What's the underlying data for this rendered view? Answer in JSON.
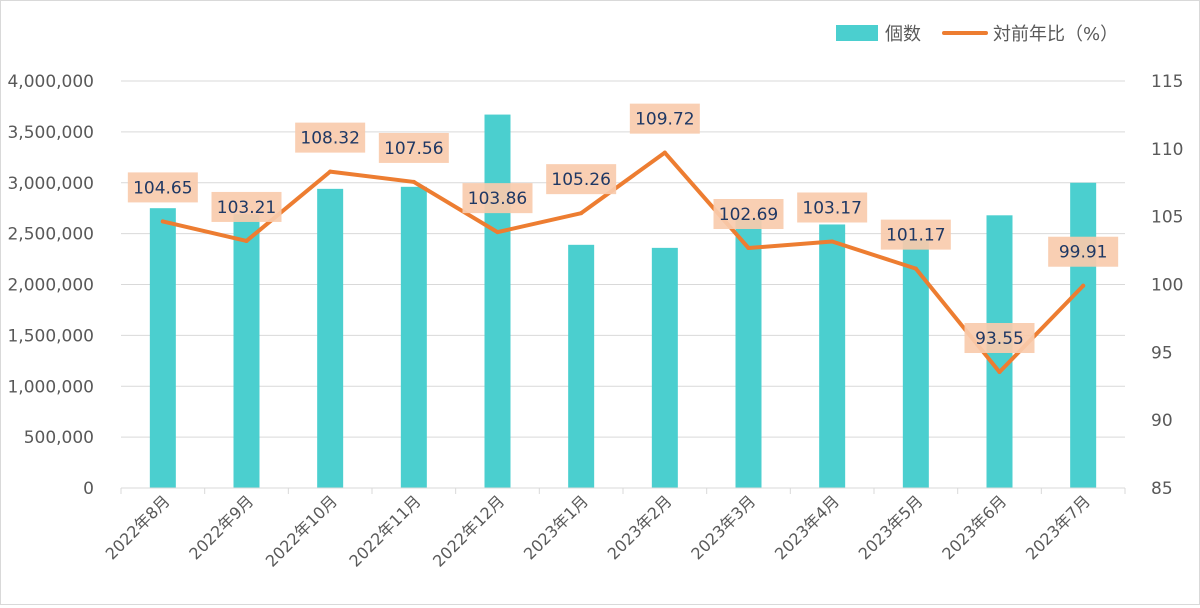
{
  "chart_data": {
    "type": "bar+line",
    "title": "",
    "categories": [
      "2022年8月",
      "2022年9月",
      "2022年10月",
      "2022年11月",
      "2022年12月",
      "2023年1月",
      "2023年2月",
      "2023年3月",
      "2023年4月",
      "2023年5月",
      "2023年6月",
      "2023年7月"
    ],
    "series": [
      {
        "name": "個数",
        "type": "bar",
        "axis": "left",
        "color": "#4bcfcf",
        "values": [
          2750000,
          2690000,
          2940000,
          2960000,
          3670000,
          2390000,
          2360000,
          2650000,
          2590000,
          2440000,
          2680000,
          3000000
        ]
      },
      {
        "name": "対前年比（%）",
        "type": "line",
        "axis": "right",
        "color": "#ed7d31",
        "values": [
          104.65,
          103.21,
          108.32,
          107.56,
          103.86,
          105.26,
          109.72,
          102.69,
          103.17,
          101.17,
          93.55,
          99.91
        ],
        "labels": [
          "104.65",
          "103.21",
          "108.32",
          "107.56",
          "103.86",
          "105.26",
          "109.72",
          "102.69",
          "103.17",
          "101.17",
          "93.55",
          "99.91"
        ]
      }
    ],
    "y_left": {
      "lim": [
        0,
        4000000
      ],
      "ticks": [
        0,
        500000,
        1000000,
        1500000,
        2000000,
        2500000,
        3000000,
        3500000,
        4000000
      ],
      "tick_labels": [
        "0",
        "500,000",
        "1,000,000",
        "1,500,000",
        "2,000,000",
        "2,500,000",
        "3,000,000",
        "3,500,000",
        "4,000,000"
      ]
    },
    "y_right": {
      "lim": [
        85,
        115
      ],
      "ticks": [
        85,
        90,
        95,
        100,
        105,
        110,
        115
      ],
      "tick_labels": [
        "85",
        "90",
        "95",
        "100",
        "105",
        "110",
        "115"
      ]
    },
    "grid": true,
    "legend": "top-right",
    "label_box_color": "#f8cbad",
    "label_text_color": "#1f3864",
    "axis_text_color": "#595959",
    "grid_color": "#d9d9d9"
  }
}
